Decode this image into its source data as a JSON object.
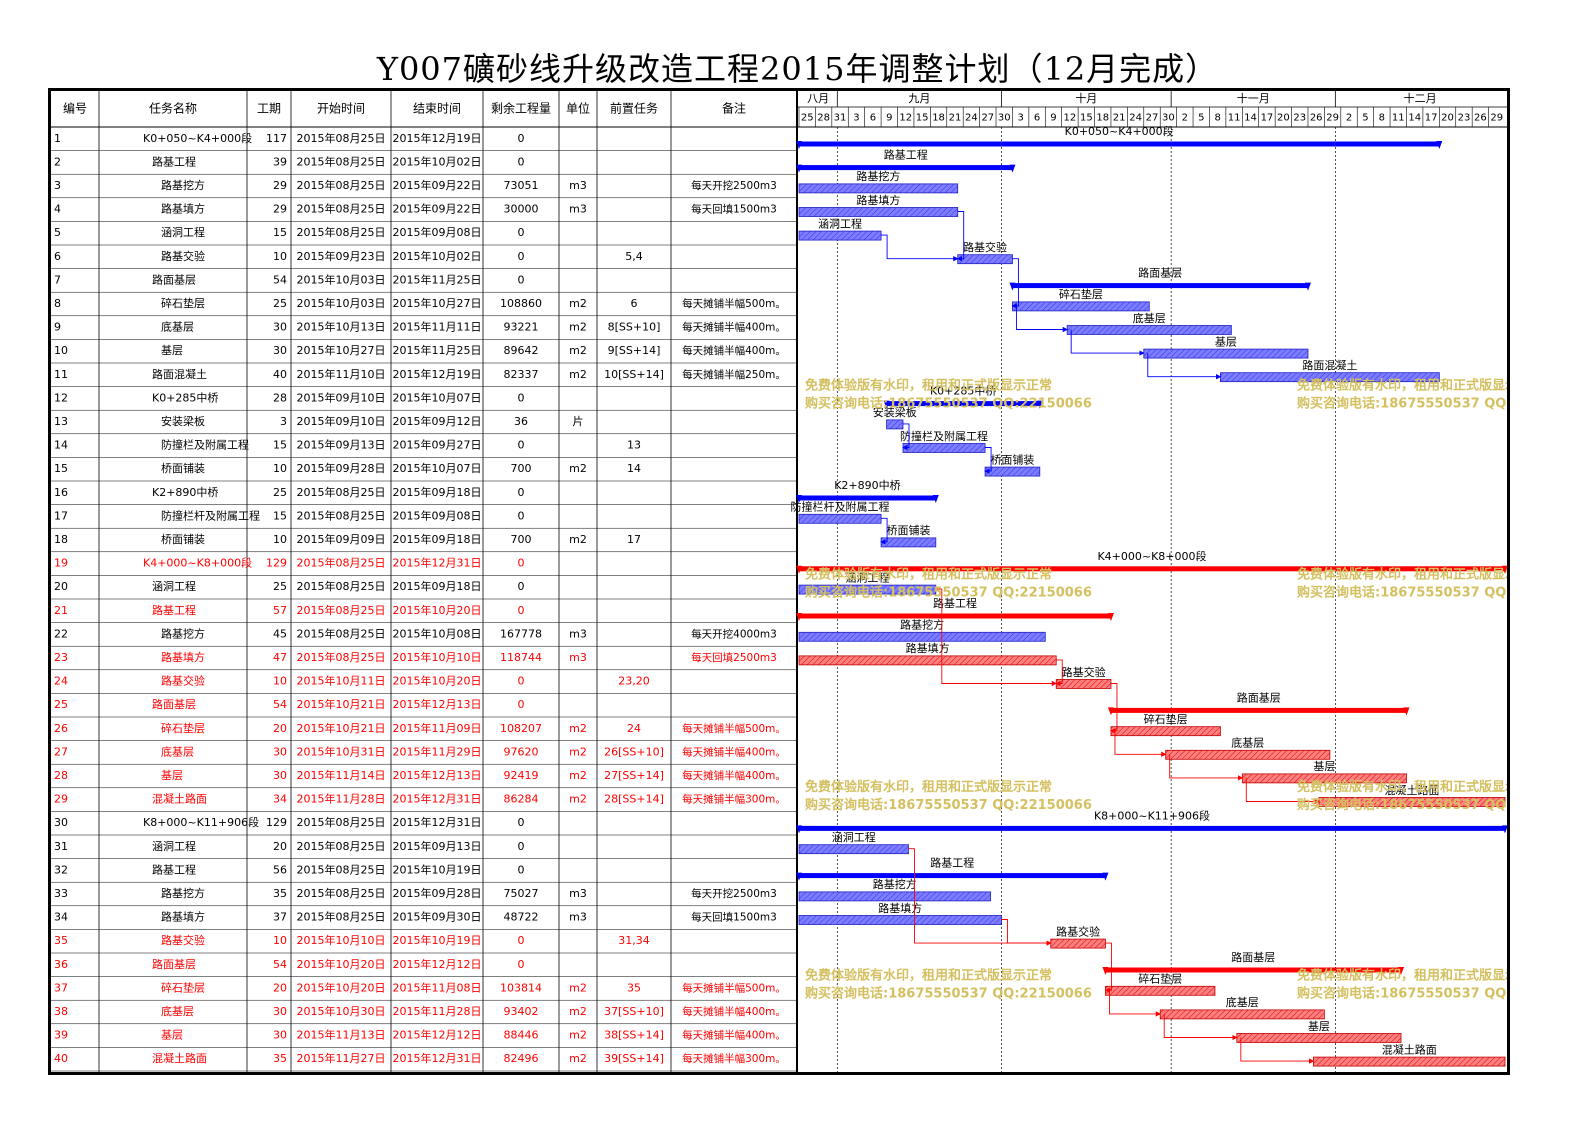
{
  "title": "Y007礦砂线升级改造工程2015年调整计划（12月完成）",
  "colors": {
    "black_task": "#000000",
    "red_task": "#ff0000",
    "blue_bar": "#0000ff",
    "red_bar": "#ff0000",
    "blue_fill": "#7d7dff",
    "red_fill": "#ff8080",
    "watermark": "#d4c060"
  },
  "columns": [
    "编号",
    "任务名称",
    "工期",
    "开始时间",
    "结束时间",
    "剩余工程量",
    "单位",
    "前置任务",
    "备注"
  ],
  "timescale": {
    "months": [
      "八月",
      "九月",
      "十月",
      "十一月",
      "十二月"
    ],
    "days": [
      "25",
      "28",
      "31",
      "3",
      "6",
      "9",
      "12",
      "15",
      "18",
      "21",
      "24",
      "27",
      "30",
      "3",
      "6",
      "9",
      "12",
      "15",
      "18",
      "21",
      "24",
      "27",
      "30",
      "2",
      "5",
      "8",
      "11",
      "14",
      "17",
      "20",
      "23",
      "26",
      "29",
      "2",
      "5",
      "8",
      "11",
      "14",
      "17",
      "20",
      "23",
      "26",
      "29"
    ]
  },
  "watermark": {
    "line1": "免费体验版有水印，租用和正式版显示正常",
    "line2": "购买咨询电话:18675550537 QQ:22150066"
  },
  "chart_data": {
    "type": "gantt",
    "title": "Y007礦砂线升级改造工程2015年调整计划（12月完成）",
    "x_range": [
      "2015-08-25",
      "2015-12-31"
    ],
    "tasks": [
      {
        "id": "1",
        "name": "K0+050~K4+000段",
        "dur": "117",
        "start": "2015年08月25日",
        "end": "2015年12月19日",
        "qty": "0",
        "unit": "",
        "pred": "",
        "note": "",
        "level": 0,
        "summary": true,
        "red": false,
        "s": "2015-08-25",
        "e": "2015-12-19"
      },
      {
        "id": "2",
        "name": "路基工程",
        "dur": "39",
        "start": "2015年08月25日",
        "end": "2015年10月02日",
        "qty": "0",
        "unit": "",
        "pred": "",
        "note": "",
        "level": 1,
        "summary": true,
        "red": false,
        "s": "2015-08-25",
        "e": "2015-10-02"
      },
      {
        "id": "3",
        "name": "路基挖方",
        "dur": "29",
        "start": "2015年08月25日",
        "end": "2015年09月22日",
        "qty": "73051",
        "unit": "m3",
        "pred": "",
        "note": "每天开挖2500m3",
        "level": 2,
        "summary": false,
        "red": false,
        "s": "2015-08-25",
        "e": "2015-09-22"
      },
      {
        "id": "4",
        "name": "路基填方",
        "dur": "29",
        "start": "2015年08月25日",
        "end": "2015年09月22日",
        "qty": "30000",
        "unit": "m3",
        "pred": "",
        "note": "每天回填1500m3",
        "level": 2,
        "summary": false,
        "red": false,
        "s": "2015-08-25",
        "e": "2015-09-22"
      },
      {
        "id": "5",
        "name": "涵洞工程",
        "dur": "15",
        "start": "2015年08月25日",
        "end": "2015年09月08日",
        "qty": "0",
        "unit": "",
        "pred": "",
        "note": "",
        "level": 2,
        "summary": false,
        "red": false,
        "s": "2015-08-25",
        "e": "2015-09-08"
      },
      {
        "id": "6",
        "name": "路基交验",
        "dur": "10",
        "start": "2015年09月23日",
        "end": "2015年10月02日",
        "qty": "0",
        "unit": "",
        "pred": "5,4",
        "note": "",
        "level": 2,
        "summary": false,
        "red": false,
        "s": "2015-09-23",
        "e": "2015-10-02"
      },
      {
        "id": "7",
        "name": "路面基层",
        "dur": "54",
        "start": "2015年10月03日",
        "end": "2015年11月25日",
        "qty": "0",
        "unit": "",
        "pred": "",
        "note": "",
        "level": 1,
        "summary": true,
        "red": false,
        "s": "2015-10-03",
        "e": "2015-11-25"
      },
      {
        "id": "8",
        "name": "碎石垫层",
        "dur": "25",
        "start": "2015年10月03日",
        "end": "2015年10月27日",
        "qty": "108860",
        "unit": "m2",
        "pred": "6",
        "note": "每天摊铺半幅500m。",
        "level": 2,
        "summary": false,
        "red": false,
        "s": "2015-10-03",
        "e": "2015-10-27"
      },
      {
        "id": "9",
        "name": "底基层",
        "dur": "30",
        "start": "2015年10月13日",
        "end": "2015年11月11日",
        "qty": "93221",
        "unit": "m2",
        "pred": "8[SS+10]",
        "note": "每天摊铺半幅400m。",
        "level": 2,
        "summary": false,
        "red": false,
        "s": "2015-10-13",
        "e": "2015-11-11"
      },
      {
        "id": "10",
        "name": "基层",
        "dur": "30",
        "start": "2015年10月27日",
        "end": "2015年11月25日",
        "qty": "89642",
        "unit": "m2",
        "pred": "9[SS+14]",
        "note": "每天摊铺半幅400m。",
        "level": 2,
        "summary": false,
        "red": false,
        "s": "2015-10-27",
        "e": "2015-11-25"
      },
      {
        "id": "11",
        "name": "路面混凝土",
        "dur": "40",
        "start": "2015年11月10日",
        "end": "2015年12月19日",
        "qty": "82337",
        "unit": "m2",
        "pred": "10[SS+14]",
        "note": "每天摊铺半幅250m。",
        "level": 1,
        "summary": false,
        "red": false,
        "s": "2015-11-10",
        "e": "2015-12-19"
      },
      {
        "id": "12",
        "name": "K0+285中桥",
        "dur": "28",
        "start": "2015年09月10日",
        "end": "2015年10月07日",
        "qty": "0",
        "unit": "",
        "pred": "",
        "note": "",
        "level": 1,
        "summary": true,
        "red": false,
        "s": "2015-09-10",
        "e": "2015-10-07"
      },
      {
        "id": "13",
        "name": "安装梁板",
        "dur": "3",
        "start": "2015年09月10日",
        "end": "2015年09月12日",
        "qty": "36",
        "unit": "片",
        "pred": "",
        "note": "",
        "level": 2,
        "summary": false,
        "red": false,
        "s": "2015-09-10",
        "e": "2015-09-12"
      },
      {
        "id": "14",
        "name": "防撞栏及附属工程",
        "dur": "15",
        "start": "2015年09月13日",
        "end": "2015年09月27日",
        "qty": "0",
        "unit": "",
        "pred": "13",
        "note": "",
        "level": 2,
        "summary": false,
        "red": false,
        "s": "2015-09-13",
        "e": "2015-09-27"
      },
      {
        "id": "15",
        "name": "桥面铺装",
        "dur": "10",
        "start": "2015年09月28日",
        "end": "2015年10月07日",
        "qty": "700",
        "unit": "m2",
        "pred": "14",
        "note": "",
        "level": 2,
        "summary": false,
        "red": false,
        "s": "2015-09-28",
        "e": "2015-10-07"
      },
      {
        "id": "16",
        "name": "K2+890中桥",
        "dur": "25",
        "start": "2015年08月25日",
        "end": "2015年09月18日",
        "qty": "0",
        "unit": "",
        "pred": "",
        "note": "",
        "level": 1,
        "summary": true,
        "red": false,
        "s": "2015-08-25",
        "e": "2015-09-18"
      },
      {
        "id": "17",
        "name": "防撞栏杆及附属工程",
        "dur": "15",
        "start": "2015年08月25日",
        "end": "2015年09月08日",
        "qty": "0",
        "unit": "",
        "pred": "",
        "note": "",
        "level": 2,
        "summary": false,
        "red": false,
        "s": "2015-08-25",
        "e": "2015-09-08"
      },
      {
        "id": "18",
        "name": "桥面铺装",
        "dur": "10",
        "start": "2015年09月09日",
        "end": "2015年09月18日",
        "qty": "700",
        "unit": "m2",
        "pred": "17",
        "note": "",
        "level": 2,
        "summary": false,
        "red": false,
        "s": "2015-09-09",
        "e": "2015-09-18"
      },
      {
        "id": "19",
        "name": "K4+000~K8+000段",
        "dur": "129",
        "start": "2015年08月25日",
        "end": "2015年12月31日",
        "qty": "0",
        "unit": "",
        "pred": "",
        "note": "",
        "level": 0,
        "summary": true,
        "red": true,
        "s": "2015-08-25",
        "e": "2015-12-31"
      },
      {
        "id": "20",
        "name": "涵洞工程",
        "dur": "25",
        "start": "2015年08月25日",
        "end": "2015年09月18日",
        "qty": "0",
        "unit": "",
        "pred": "",
        "note": "",
        "level": 1,
        "summary": false,
        "red": false,
        "s": "2015-08-25",
        "e": "2015-09-18"
      },
      {
        "id": "21",
        "name": "路基工程",
        "dur": "57",
        "start": "2015年08月25日",
        "end": "2015年10月20日",
        "qty": "0",
        "unit": "",
        "pred": "",
        "note": "",
        "level": 1,
        "summary": true,
        "red": true,
        "s": "2015-08-25",
        "e": "2015-10-20"
      },
      {
        "id": "22",
        "name": "路基挖方",
        "dur": "45",
        "start": "2015年08月25日",
        "end": "2015年10月08日",
        "qty": "167778",
        "unit": "m3",
        "pred": "",
        "note": "每天开挖4000m3",
        "level": 2,
        "summary": false,
        "red": false,
        "s": "2015-08-25",
        "e": "2015-10-08"
      },
      {
        "id": "23",
        "name": "路基填方",
        "dur": "47",
        "start": "2015年08月25日",
        "end": "2015年10月10日",
        "qty": "118744",
        "unit": "m3",
        "pred": "",
        "note": "每天回填2500m3",
        "level": 2,
        "summary": false,
        "red": true,
        "s": "2015-08-25",
        "e": "2015-10-10"
      },
      {
        "id": "24",
        "name": "路基交验",
        "dur": "10",
        "start": "2015年10月11日",
        "end": "2015年10月20日",
        "qty": "0",
        "unit": "",
        "pred": "23,20",
        "note": "",
        "level": 2,
        "summary": false,
        "red": true,
        "s": "2015-10-11",
        "e": "2015-10-20"
      },
      {
        "id": "25",
        "name": "路面基层",
        "dur": "54",
        "start": "2015年10月21日",
        "end": "2015年12月13日",
        "qty": "0",
        "unit": "",
        "pred": "",
        "note": "",
        "level": 1,
        "summary": true,
        "red": true,
        "s": "2015-10-21",
        "e": "2015-12-13"
      },
      {
        "id": "26",
        "name": "碎石垫层",
        "dur": "20",
        "start": "2015年10月21日",
        "end": "2015年11月09日",
        "qty": "108207",
        "unit": "m2",
        "pred": "24",
        "note": "每天摊铺半幅500m。",
        "level": 2,
        "summary": false,
        "red": true,
        "s": "2015-10-21",
        "e": "2015-11-09"
      },
      {
        "id": "27",
        "name": "底基层",
        "dur": "30",
        "start": "2015年10月31日",
        "end": "2015年11月29日",
        "qty": "97620",
        "unit": "m2",
        "pred": "26[SS+10]",
        "note": "每天摊铺半幅400m。",
        "level": 2,
        "summary": false,
        "red": true,
        "s": "2015-10-31",
        "e": "2015-11-29"
      },
      {
        "id": "28",
        "name": "基层",
        "dur": "30",
        "start": "2015年11月14日",
        "end": "2015年12月13日",
        "qty": "92419",
        "unit": "m2",
        "pred": "27[SS+14]",
        "note": "每天摊铺半幅400m。",
        "level": 2,
        "summary": false,
        "red": true,
        "s": "2015-11-14",
        "e": "2015-12-13"
      },
      {
        "id": "29",
        "name": "混凝土路面",
        "dur": "34",
        "start": "2015年11月28日",
        "end": "2015年12月31日",
        "qty": "86284",
        "unit": "m2",
        "pred": "28[SS+14]",
        "note": "每天摊铺半幅300m。",
        "level": 1,
        "summary": false,
        "red": true,
        "s": "2015-11-28",
        "e": "2015-12-31"
      },
      {
        "id": "30",
        "name": "K8+000~K11+906段",
        "dur": "129",
        "start": "2015年08月25日",
        "end": "2015年12月31日",
        "qty": "0",
        "unit": "",
        "pred": "",
        "note": "",
        "level": 0,
        "summary": true,
        "red": false,
        "s": "2015-08-25",
        "e": "2015-12-31"
      },
      {
        "id": "31",
        "name": "涵洞工程",
        "dur": "20",
        "start": "2015年08月25日",
        "end": "2015年09月13日",
        "qty": "0",
        "unit": "",
        "pred": "",
        "note": "",
        "level": 1,
        "summary": false,
        "red": false,
        "s": "2015-08-25",
        "e": "2015-09-13"
      },
      {
        "id": "32",
        "name": "路基工程",
        "dur": "56",
        "start": "2015年08月25日",
        "end": "2015年10月19日",
        "qty": "0",
        "unit": "",
        "pred": "",
        "note": "",
        "level": 1,
        "summary": true,
        "red": false,
        "s": "2015-08-25",
        "e": "2015-10-19"
      },
      {
        "id": "33",
        "name": "路基挖方",
        "dur": "35",
        "start": "2015年08月25日",
        "end": "2015年09月28日",
        "qty": "75027",
        "unit": "m3",
        "pred": "",
        "note": "每天开挖2500m3",
        "level": 2,
        "summary": false,
        "red": false,
        "s": "2015-08-25",
        "e": "2015-09-28"
      },
      {
        "id": "34",
        "name": "路基填方",
        "dur": "37",
        "start": "2015年08月25日",
        "end": "2015年09月30日",
        "qty": "48722",
        "unit": "m3",
        "pred": "",
        "note": "每天回填1500m3",
        "level": 2,
        "summary": false,
        "red": false,
        "s": "2015-08-25",
        "e": "2015-09-30"
      },
      {
        "id": "35",
        "name": "路基交验",
        "dur": "10",
        "start": "2015年10月10日",
        "end": "2015年10月19日",
        "qty": "0",
        "unit": "",
        "pred": "31,34",
        "note": "",
        "level": 2,
        "summary": false,
        "red": true,
        "s": "2015-10-10",
        "e": "2015-10-19"
      },
      {
        "id": "36",
        "name": "路面基层",
        "dur": "54",
        "start": "2015年10月20日",
        "end": "2015年12月12日",
        "qty": "0",
        "unit": "",
        "pred": "",
        "note": "",
        "level": 1,
        "summary": true,
        "red": true,
        "s": "2015-10-20",
        "e": "2015-12-12"
      },
      {
        "id": "37",
        "name": "碎石垫层",
        "dur": "20",
        "start": "2015年10月20日",
        "end": "2015年11月08日",
        "qty": "103814",
        "unit": "m2",
        "pred": "35",
        "note": "每天摊铺半幅500m。",
        "level": 2,
        "summary": false,
        "red": true,
        "s": "2015-10-20",
        "e": "2015-11-08"
      },
      {
        "id": "38",
        "name": "底基层",
        "dur": "30",
        "start": "2015年10月30日",
        "end": "2015年11月28日",
        "qty": "93402",
        "unit": "m2",
        "pred": "37[SS+10]",
        "note": "每天摊铺半幅400m。",
        "level": 2,
        "summary": false,
        "red": true,
        "s": "2015-10-30",
        "e": "2015-11-28"
      },
      {
        "id": "39",
        "name": "基层",
        "dur": "30",
        "start": "2015年11月13日",
        "end": "2015年12月12日",
        "qty": "88446",
        "unit": "m2",
        "pred": "38[SS+14]",
        "note": "每天摊铺半幅400m。",
        "level": 2,
        "summary": false,
        "red": true,
        "s": "2015-11-13",
        "e": "2015-12-12"
      },
      {
        "id": "40",
        "name": "混凝土路面",
        "dur": "35",
        "start": "2015年11月27日",
        "end": "2015年12月31日",
        "qty": "82496",
        "unit": "m2",
        "pred": "39[SS+14]",
        "note": "每天摊铺半幅300m。",
        "level": 1,
        "summary": false,
        "red": true,
        "s": "2015-11-27",
        "e": "2015-12-31"
      }
    ]
  }
}
